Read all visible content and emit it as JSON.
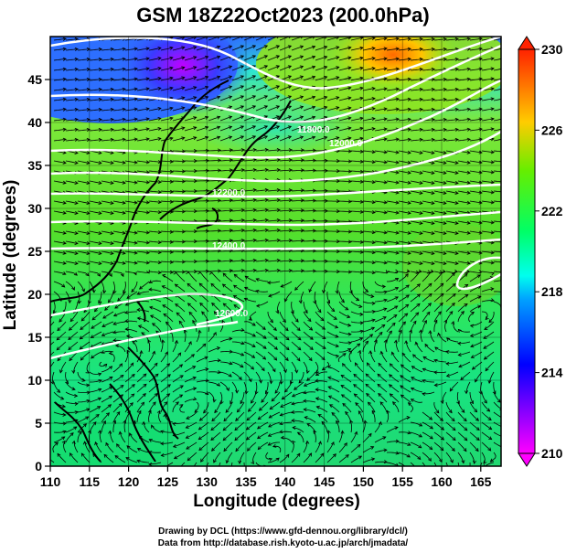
{
  "title": "GSM 18Z22Oct2023 (200.0hPa)",
  "xlabel": "Longitude (degrees)",
  "ylabel": "Latitude  (degrees)",
  "credits": [
    "Drawing by DCL (https://www.gfd-dennou.org/library/dcl/)",
    "Data from http://database.rish.kyoto-u.ac.jp/arch/jmadata/"
  ],
  "map": {
    "lon_range": [
      110,
      170
    ],
    "lat_range": [
      0,
      50
    ],
    "lon_ticks": [
      "110",
      "115",
      "120",
      "125",
      "130",
      "135",
      "140",
      "145",
      "150",
      "155",
      "160",
      "165"
    ],
    "lat_ticks": [
      "0",
      "5",
      "10",
      "15",
      "20",
      "25",
      "30",
      "35",
      "40",
      "45"
    ]
  },
  "colorbar": {
    "range": [
      210,
      230
    ],
    "labels": [
      "230",
      "226",
      "222",
      "218",
      "214",
      "210"
    ],
    "colors": [
      "#ff00ff",
      "#0000ff",
      "#00ccff",
      "#00ff66",
      "#66dd00",
      "#ffcc00",
      "#ff3300"
    ]
  },
  "contour_labels": [
    "11800.0",
    "12000.0",
    "12200.0",
    "12400.0",
    "12600.0"
  ]
}
